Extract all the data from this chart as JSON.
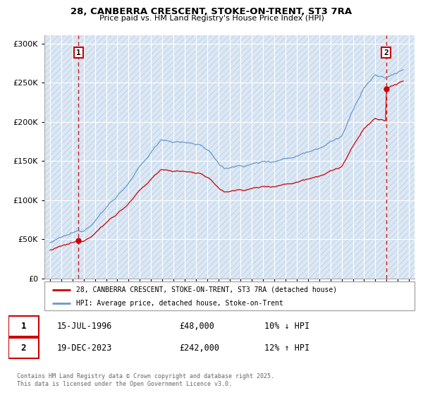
{
  "title_line1": "28, CANBERRA CRESCENT, STOKE-ON-TRENT, ST3 7RA",
  "title_line2": "Price paid vs. HM Land Registry's House Price Index (HPI)",
  "background_color": "#ffffff",
  "plot_bg_color": "#dce8f5",
  "hatch_color": "#c8d8e8",
  "grid_color": "#ffffff",
  "red_line_color": "#cc0000",
  "blue_line_color": "#6699cc",
  "dashed_red_color": "#cc0000",
  "marker1_x": 1996.54,
  "marker1_y": 48000,
  "marker2_x": 2023.96,
  "marker2_y": 242000,
  "ylim_min": 0,
  "ylim_max": 310000,
  "xlim_min": 1993.5,
  "xlim_max": 2026.5,
  "legend_label1": "28, CANBERRA CRESCENT, STOKE-ON-TRENT, ST3 7RA (detached house)",
  "legend_label2": "HPI: Average price, detached house, Stoke-on-Trent",
  "annotation1_label": "1",
  "annotation1_date": "15-JUL-1996",
  "annotation1_price": "£48,000",
  "annotation1_hpi": "10% ↓ HPI",
  "annotation2_label": "2",
  "annotation2_date": "19-DEC-2023",
  "annotation2_price": "£242,000",
  "annotation2_hpi": "12% ↑ HPI",
  "footer": "Contains HM Land Registry data © Crown copyright and database right 2025.\nThis data is licensed under the Open Government Licence v3.0.",
  "yticks": [
    0,
    50000,
    100000,
    150000,
    200000,
    250000,
    300000
  ],
  "ytick_labels": [
    "£0",
    "£50K",
    "£100K",
    "£150K",
    "£200K",
    "£250K",
    "£300K"
  ]
}
